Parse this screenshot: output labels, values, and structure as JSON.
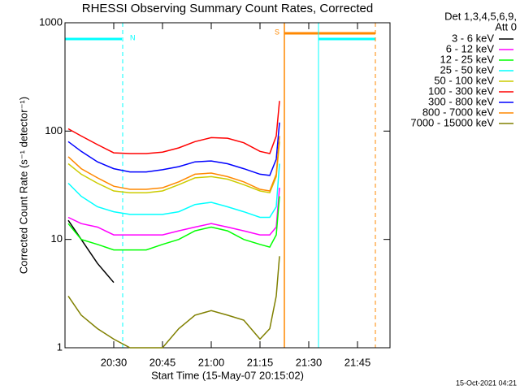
{
  "chart_data": {
    "type": "line",
    "title": "RHESSI Observing Summary Count Rates, Corrected",
    "x_label": "Start Time (15-May-07 20:15:02)",
    "y_label": "Corrected Count Rate (s⁻¹ detector⁻¹)",
    "legend_header": [
      "Det 1,3,4,5,6,9,",
      "Att 0"
    ],
    "footer": "15-Oct-2021 04:21",
    "annotations": [
      "N",
      "S"
    ],
    "log_y": true,
    "xlim": [
      "20:15",
      "21:55"
    ],
    "xticks": [
      "20:30",
      "20:45",
      "21:00",
      "21:15",
      "21:30",
      "21:45"
    ],
    "ylim": [
      1,
      1000
    ],
    "yticks": [
      1,
      10,
      100,
      1000
    ],
    "x": [
      "20:16",
      "20:20",
      "20:25",
      "20:30",
      "20:35",
      "20:40",
      "20:45",
      "20:50",
      "20:55",
      "21:00",
      "21:05",
      "21:10",
      "21:15",
      "21:18",
      "21:20",
      "21:21"
    ],
    "series": [
      {
        "name": "3 - 6 keV",
        "color": "#000000",
        "values": [
          15,
          10,
          6,
          4,
          null,
          null,
          null,
          null,
          null,
          null,
          null,
          null,
          null,
          null,
          null,
          null
        ]
      },
      {
        "name": "6 - 12 keV",
        "color": "#ff00ff",
        "values": [
          16,
          14,
          13,
          11,
          11,
          11,
          11,
          12,
          13,
          14,
          13,
          12,
          11,
          11,
          13,
          30
        ]
      },
      {
        "name": "12 - 25 keV",
        "color": "#00ff00",
        "values": [
          14,
          10,
          9,
          8,
          8,
          8,
          9,
          10,
          12,
          13,
          12,
          10,
          9,
          8.5,
          11,
          25
        ]
      },
      {
        "name": "25 - 50 keV",
        "color": "#00ffff",
        "values": [
          33,
          25,
          20,
          18,
          17,
          17,
          17,
          18,
          21,
          22,
          20,
          18,
          16,
          16,
          20,
          50
        ]
      },
      {
        "name": "50 - 100 keV",
        "color": "#cccc00",
        "values": [
          50,
          40,
          33,
          28,
          27,
          27,
          28,
          32,
          37,
          38,
          36,
          32,
          28,
          27,
          38,
          80
        ]
      },
      {
        "name": "100 - 300 keV",
        "color": "#ff0000",
        "values": [
          105,
          90,
          75,
          63,
          62,
          62,
          64,
          70,
          80,
          87,
          86,
          78,
          65,
          62,
          90,
          190
        ]
      },
      {
        "name": "300 - 800 keV",
        "color": "#0000ff",
        "values": [
          80,
          65,
          52,
          45,
          42,
          42,
          44,
          47,
          52,
          53,
          50,
          45,
          40,
          39,
          55,
          120
        ]
      },
      {
        "name": "800 - 7000 keV",
        "color": "#ff8800",
        "values": [
          58,
          45,
          37,
          31,
          29,
          29,
          30,
          34,
          40,
          41,
          38,
          34,
          29,
          28,
          40,
          90
        ]
      },
      {
        "name": "7000 - 15000 keV",
        "color": "#808000",
        "values": [
          3,
          2,
          1.5,
          1.2,
          1,
          1,
          1,
          1.5,
          2,
          2.2,
          2,
          1.8,
          1.2,
          1.5,
          3,
          7
        ]
      }
    ]
  }
}
